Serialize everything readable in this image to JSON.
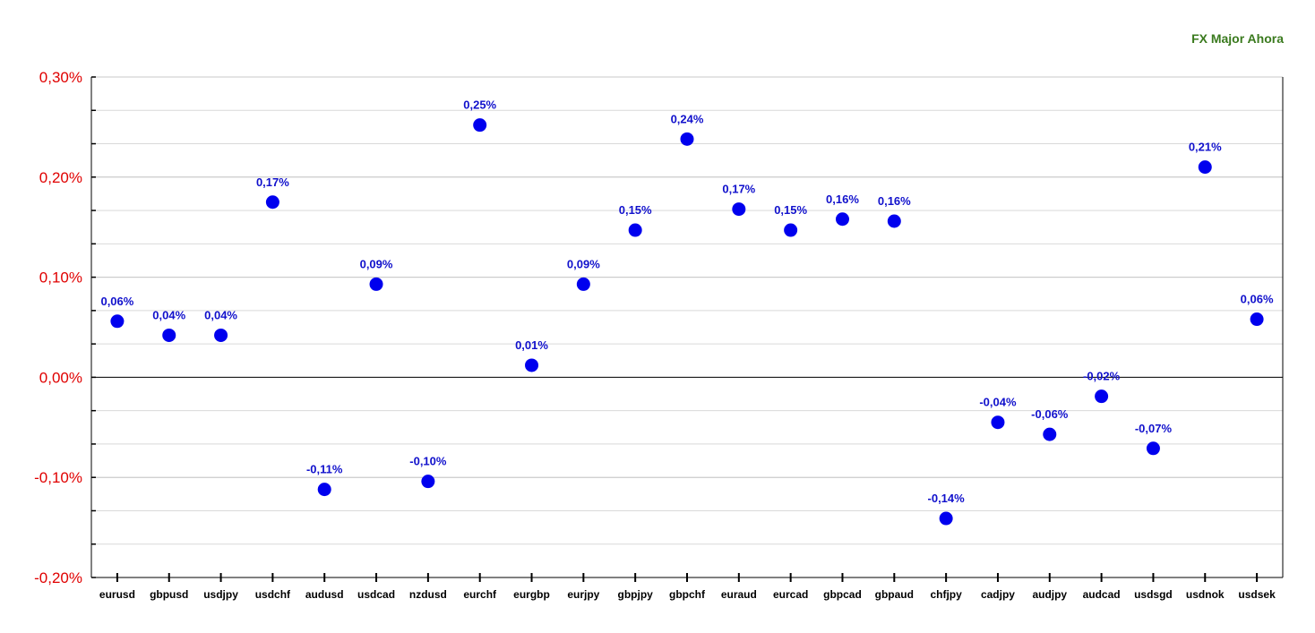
{
  "chart_data": {
    "type": "scatter",
    "title": "FX Major Ahora",
    "xlabel": "",
    "ylabel": "",
    "ylim": [
      -0.2,
      0.3
    ],
    "ytick_values": [
      -0.2,
      -0.1,
      0.0,
      0.1,
      0.2,
      0.3
    ],
    "ytick_labels": [
      "-0,20%",
      "-0,10%",
      "0,00%",
      "0,10%",
      "0,20%",
      "0,30%"
    ],
    "grid": true,
    "legend": "none",
    "categories": [
      "eurusd",
      "gbpusd",
      "usdjpy",
      "usdchf",
      "audusd",
      "usdcad",
      "nzdusd",
      "eurchf",
      "eurgbp",
      "eurjpy",
      "gbpjpy",
      "gbpchf",
      "euraud",
      "eurcad",
      "gbpcad",
      "gbpaud",
      "chfjpy",
      "cadjpy",
      "audjpy",
      "audcad",
      "usdsgd",
      "usdnok",
      "usdsek"
    ],
    "values": [
      0.056,
      0.042,
      0.042,
      0.175,
      -0.112,
      0.093,
      -0.104,
      0.252,
      0.012,
      0.093,
      0.147,
      0.238,
      0.168,
      0.147,
      0.158,
      0.156,
      -0.141,
      -0.045,
      -0.057,
      -0.019,
      -0.071,
      0.21,
      0.058
    ],
    "labels": [
      "0,06%",
      "0,04%",
      "0,04%",
      "0,17%",
      "-0,11%",
      "0,09%",
      "-0,10%",
      "0,25%",
      "0,01%",
      "0,09%",
      "0,15%",
      "0,24%",
      "0,17%",
      "0,15%",
      "0,16%",
      "0,16%",
      "-0,14%",
      "-0,04%",
      "-0,06%",
      "-0,02%",
      "-0,07%",
      "0,21%",
      "0,06%"
    ],
    "colors": {
      "marker": "#0000ee",
      "label": "#1111cc",
      "ytick": "#e00000",
      "title": "#3a7a1e",
      "grid": "#d9d9d9",
      "axis": "#000000"
    }
  }
}
